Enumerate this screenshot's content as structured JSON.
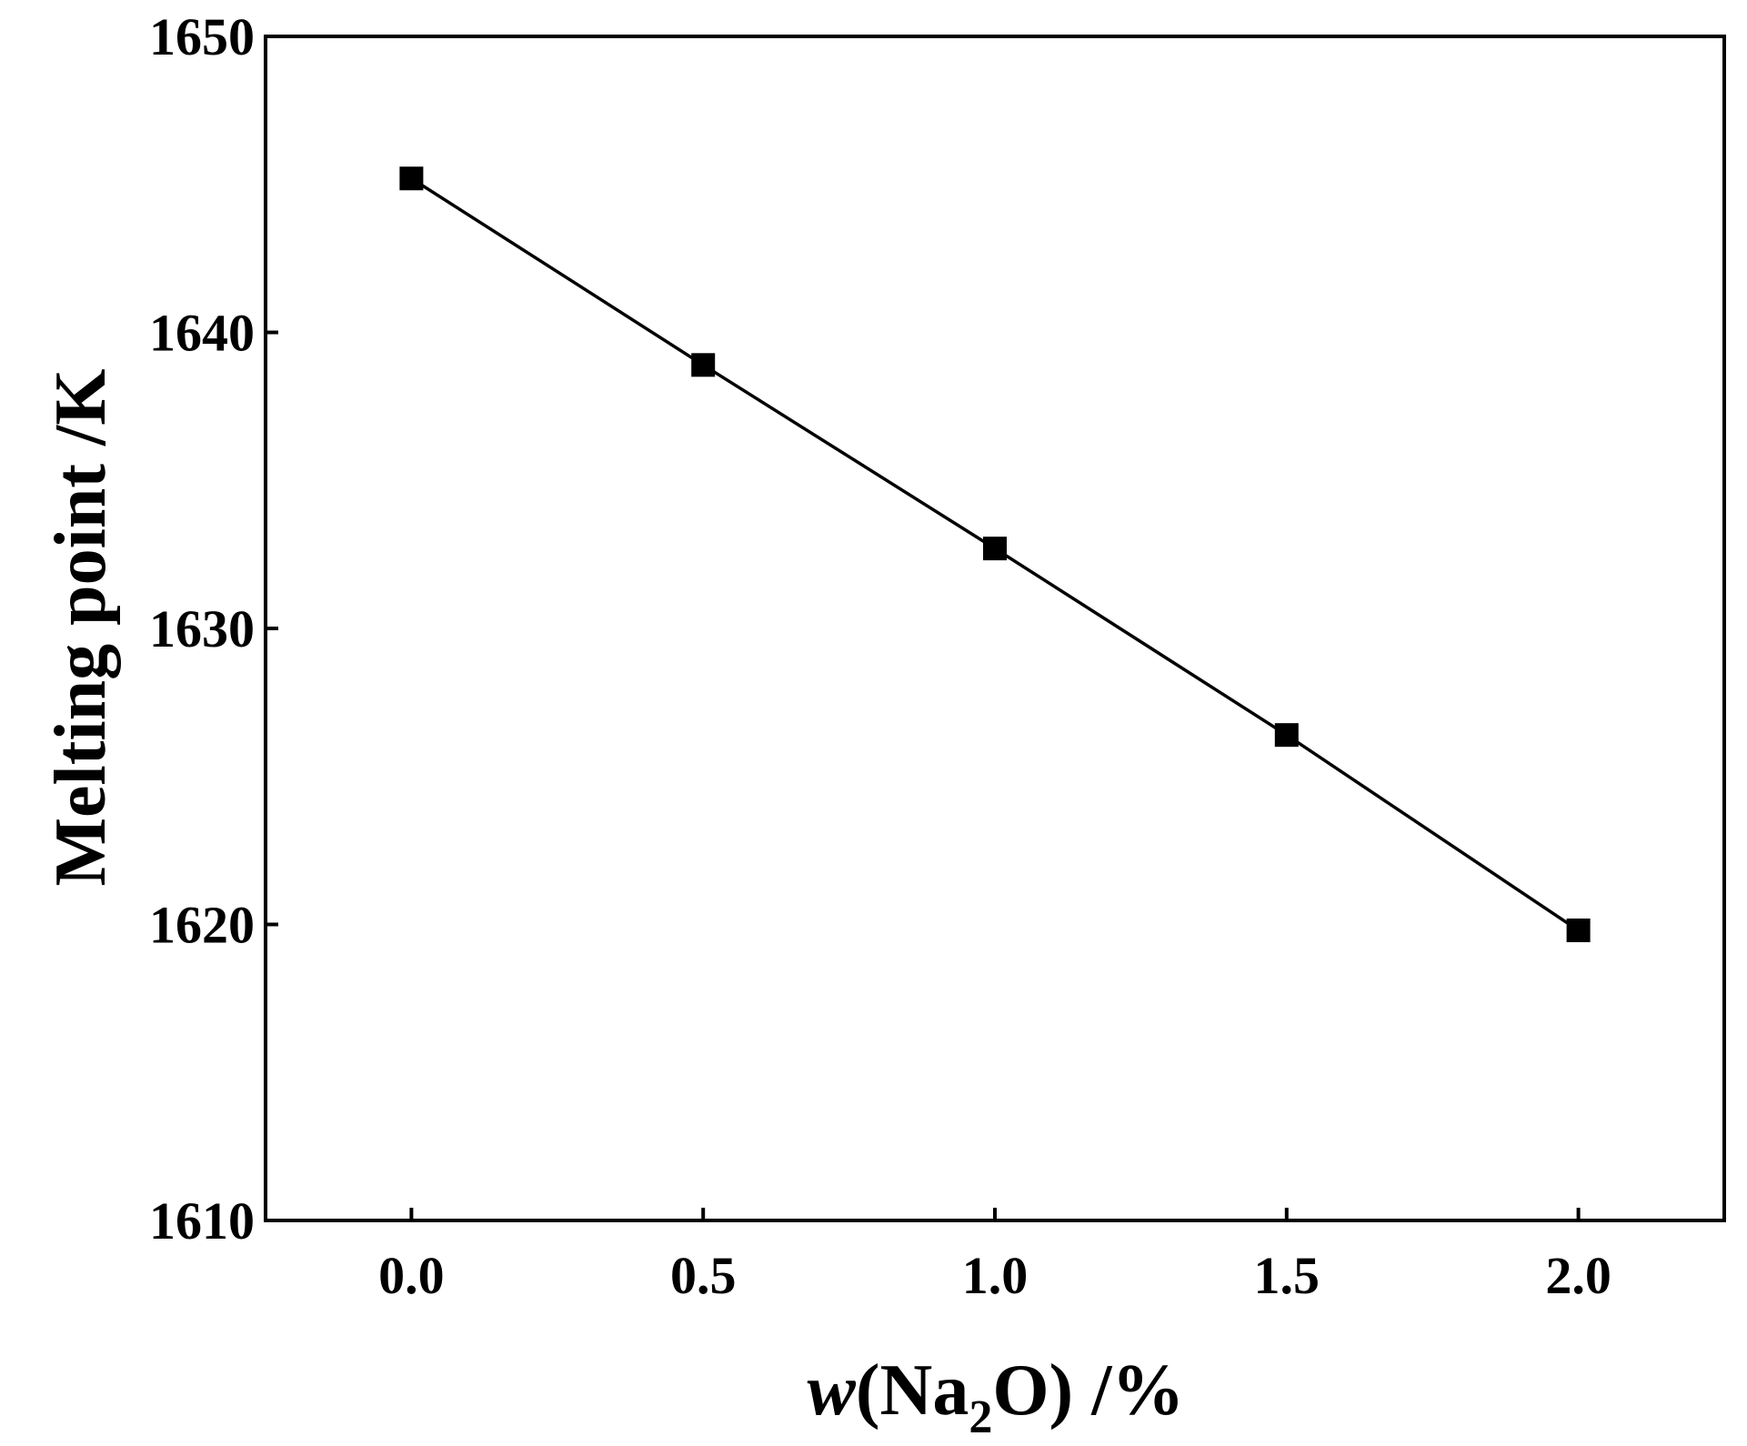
{
  "chart_data": {
    "type": "line",
    "xlabel": {
      "symbol": "w",
      "open": "(Na",
      "subscript": "2",
      "close": "O)",
      "unit": " /%"
    },
    "ylabel": "Melting point /K",
    "xlim": [
      -0.25,
      2.25
    ],
    "ylim": [
      1610,
      1650
    ],
    "xticks": [
      0.0,
      0.5,
      1.0,
      1.5,
      2.0
    ],
    "xtick_labels": [
      "0.0",
      "0.5",
      "1.0",
      "1.5",
      "2.0"
    ],
    "yticks": [
      1610,
      1620,
      1630,
      1640,
      1650
    ],
    "ytick_labels": [
      "1610",
      "1620",
      "1630",
      "1640",
      "1650"
    ],
    "grid": false,
    "legend": "none",
    "colors": {
      "series": "#000000",
      "axes": "#000000",
      "background": "#ffffff"
    },
    "marker": "square",
    "series": [
      {
        "x": [
          0.0,
          0.5,
          1.0,
          1.5,
          2.0
        ],
        "y": [
          1645.2,
          1638.9,
          1632.7,
          1626.4,
          1619.8
        ]
      }
    ]
  }
}
